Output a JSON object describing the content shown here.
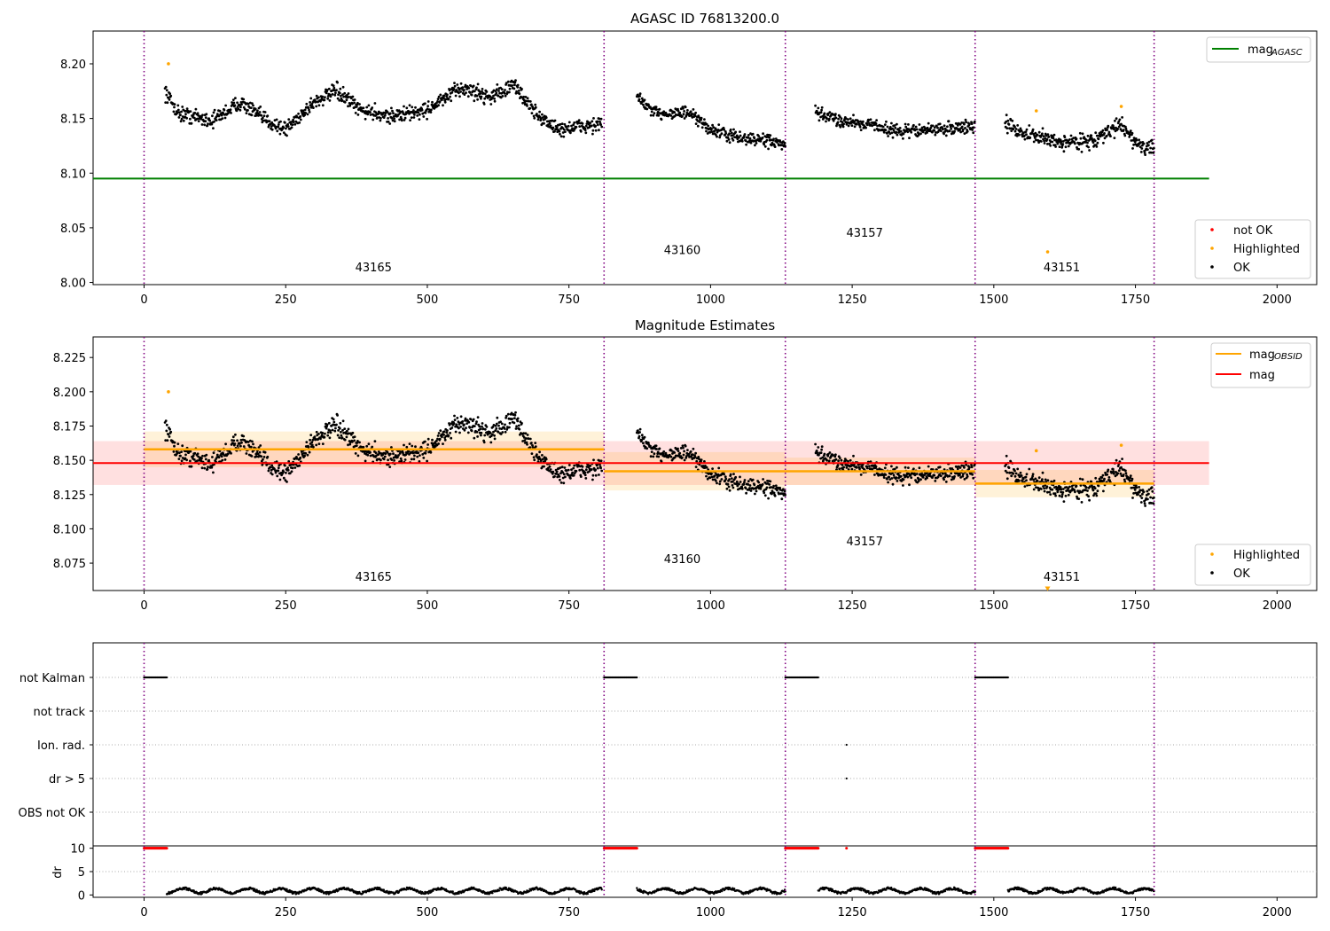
{
  "chart_data": [
    {
      "panel": "top",
      "type": "scatter",
      "title": "AGASC ID 76813200.0",
      "xlim": [
        -90,
        2070
      ],
      "ylim": [
        7.998,
        8.23
      ],
      "xticks": [
        0,
        250,
        500,
        750,
        1000,
        1250,
        1500,
        1750,
        2000
      ],
      "yticks": [
        8.0,
        8.05,
        8.1,
        8.15,
        8.2
      ],
      "ytick_labels": [
        "8.00",
        "8.05",
        "8.10",
        "8.15",
        "8.20"
      ],
      "obs_boundaries": [
        0,
        812,
        1132,
        1467,
        1783
      ],
      "obs_labels": [
        {
          "text": "43165",
          "x": 405,
          "y": 8.01
        },
        {
          "text": "43160",
          "x": 950,
          "y": 8.026
        },
        {
          "text": "43157",
          "x": 1272,
          "y": 8.042
        },
        {
          "text": "43151",
          "x": 1620,
          "y": 8.01
        }
      ],
      "agasc_mag": 8.095,
      "agasc_line_x": [
        -90,
        1880
      ],
      "legend_top": [
        {
          "label": "mag",
          "sub": "AGASC",
          "color": "#008000"
        }
      ],
      "legend_bottom": [
        {
          "label": "not OK",
          "color": "#ff0000"
        },
        {
          "label": "Highlighted",
          "color": "#ffa500"
        },
        {
          "label": "OK",
          "color": "#000000"
        }
      ],
      "highlighted_points": [
        [
          43,
          8.2
        ],
        [
          1575,
          8.157
        ],
        [
          1595,
          8.028
        ],
        [
          1725,
          8.161
        ]
      ],
      "ok_segments": [
        {
          "x": [
            37,
            808
          ],
          "knots": [
            [
              37,
              8.175
            ],
            [
              60,
              8.155
            ],
            [
              120,
              8.148
            ],
            [
              170,
              8.165
            ],
            [
              210,
              8.15
            ],
            [
              250,
              8.14
            ],
            [
              300,
              8.165
            ],
            [
              340,
              8.175
            ],
            [
              380,
              8.158
            ],
            [
              440,
              8.152
            ],
            [
              500,
              8.158
            ],
            [
              560,
              8.178
            ],
            [
              610,
              8.17
            ],
            [
              655,
              8.18
            ],
            [
              690,
              8.155
            ],
            [
              730,
              8.14
            ],
            [
              808,
              8.145
            ]
          ],
          "noise": 0.006
        },
        {
          "x": [
            870,
            1132
          ],
          "knots": [
            [
              870,
              8.17
            ],
            [
              900,
              8.155
            ],
            [
              960,
              8.155
            ],
            [
              1000,
              8.14
            ],
            [
              1050,
              8.132
            ],
            [
              1100,
              8.13
            ],
            [
              1132,
              8.125
            ]
          ],
          "noise": 0.005
        },
        {
          "x": [
            1185,
            1467
          ],
          "knots": [
            [
              1185,
              8.155
            ],
            [
              1230,
              8.148
            ],
            [
              1280,
              8.145
            ],
            [
              1330,
              8.138
            ],
            [
              1400,
              8.14
            ],
            [
              1467,
              8.143
            ]
          ],
          "noise": 0.005
        },
        {
          "x": [
            1520,
            1783
          ],
          "knots": [
            [
              1520,
              8.145
            ],
            [
              1560,
              8.135
            ],
            [
              1620,
              8.128
            ],
            [
              1680,
              8.13
            ],
            [
              1725,
              8.145
            ],
            [
              1750,
              8.128
            ],
            [
              1783,
              8.12
            ]
          ],
          "noise": 0.006
        }
      ]
    },
    {
      "panel": "middle",
      "type": "scatter",
      "title": "Magnitude Estimates",
      "xlim": [
        -90,
        2070
      ],
      "ylim": [
        8.055,
        8.24
      ],
      "xticks": [
        0,
        250,
        500,
        750,
        1000,
        1250,
        1500,
        1750,
        2000
      ],
      "yticks": [
        8.075,
        8.1,
        8.125,
        8.15,
        8.175,
        8.2,
        8.225
      ],
      "ytick_labels": [
        "8.075",
        "8.100",
        "8.125",
        "8.150",
        "8.175",
        "8.200",
        "8.225"
      ],
      "obs_boundaries": [
        0,
        812,
        1132,
        1467,
        1783
      ],
      "obs_labels": [
        {
          "text": "43165",
          "x": 405,
          "y": 8.062
        },
        {
          "text": "43160",
          "x": 950,
          "y": 8.075
        },
        {
          "text": "43157",
          "x": 1272,
          "y": 8.088
        },
        {
          "text": "43151",
          "x": 1620,
          "y": 8.062
        }
      ],
      "mean_mag": {
        "value": 8.148,
        "sigma": 0.016,
        "x": [
          -90,
          1880
        ],
        "color": "#ff0000"
      },
      "obs_mags": [
        {
          "x": [
            0,
            812
          ],
          "value": 8.158,
          "sigma": 0.013
        },
        {
          "x": [
            812,
            1132
          ],
          "value": 8.142,
          "sigma": 0.014
        },
        {
          "x": [
            1132,
            1467
          ],
          "value": 8.142,
          "sigma": 0.01
        },
        {
          "x": [
            1467,
            1783
          ],
          "value": 8.133,
          "sigma": 0.01
        }
      ],
      "obs_mag_color": "#ffa500",
      "legend_top": [
        {
          "label": "mag",
          "sub": "OBSID",
          "color": "#ffa500"
        },
        {
          "label": "mag",
          "sub": "",
          "color": "#ff0000"
        }
      ],
      "legend_bottom": [
        {
          "label": "Highlighted",
          "color": "#ffa500"
        },
        {
          "label": "OK",
          "color": "#000000"
        }
      ],
      "highlighted_points": [
        [
          43,
          8.2
        ],
        [
          1575,
          8.157
        ],
        [
          1725,
          8.161
        ]
      ],
      "offscale_marker": {
        "x": 1595,
        "y": 8.056
      }
    },
    {
      "panel": "flags",
      "type": "scatter",
      "xlim": [
        -90,
        2070
      ],
      "categories": [
        "not Kalman",
        "not track",
        "Ion. rad.",
        "dr > 5",
        "OBS not OK"
      ],
      "not_kalman_ranges": [
        [
          0,
          40
        ],
        [
          812,
          870
        ],
        [
          1132,
          1190
        ],
        [
          1467,
          1525
        ]
      ],
      "ion_rad_x": [
        1240
      ],
      "dr_gt5_x": [
        1240
      ]
    },
    {
      "panel": "dr",
      "type": "scatter",
      "ylabel": "dr",
      "xlim": [
        -90,
        2070
      ],
      "ylim": [
        -0.5,
        10.5
      ],
      "yticks": [
        0,
        5,
        10
      ],
      "xticks": [
        0,
        250,
        500,
        750,
        1000,
        1250,
        1500,
        1750,
        2000
      ],
      "high_dr_ranges": [
        [
          0,
          40
        ],
        [
          812,
          870
        ],
        [
          1132,
          1190
        ],
        [
          1467,
          1525
        ]
      ],
      "high_dr_single": [
        1240
      ],
      "high_dr_value": 10,
      "low_dr_ranges": [
        [
          40,
          808
        ],
        [
          870,
          1132
        ],
        [
          1190,
          1467
        ],
        [
          1525,
          1783
        ]
      ],
      "low_dr_level": 0.9
    }
  ]
}
